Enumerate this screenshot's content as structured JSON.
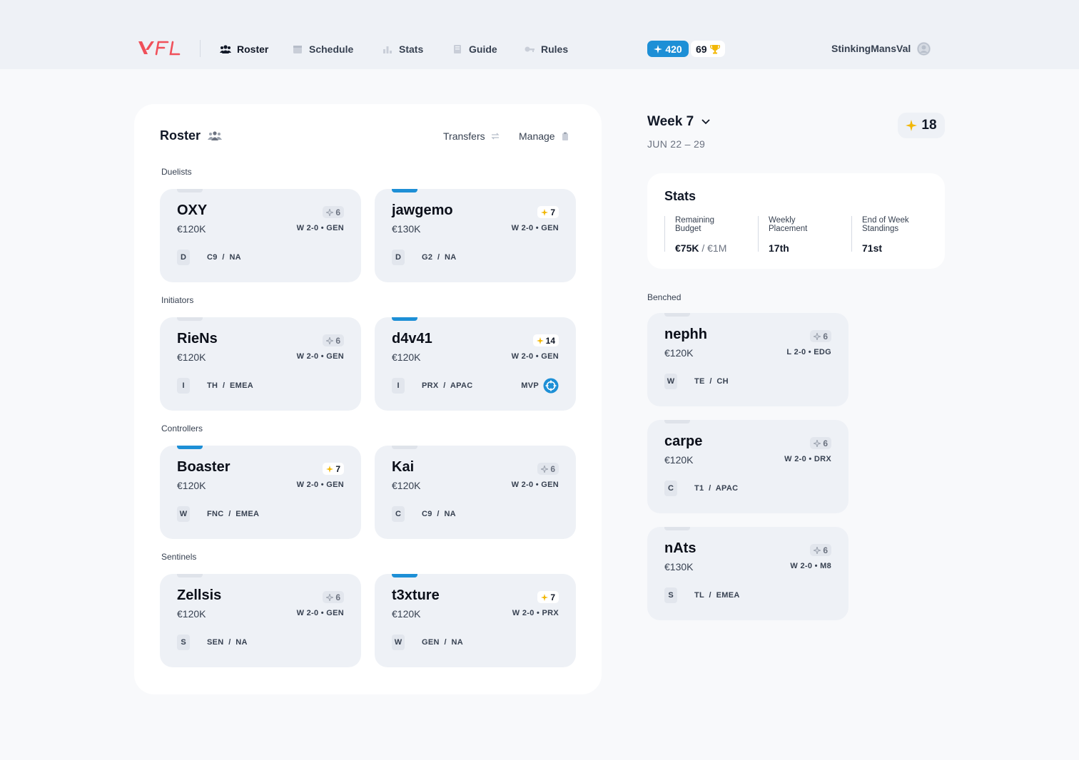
{
  "nav": {
    "items": [
      {
        "label": "Roster",
        "icon": "users-icon",
        "active": true
      },
      {
        "label": "Schedule",
        "icon": "calendar-icon"
      },
      {
        "label": "Stats",
        "icon": "bar-chart-icon"
      },
      {
        "label": "Guide",
        "icon": "book-icon"
      },
      {
        "label": "Rules",
        "icon": "key-icon"
      }
    ],
    "points": "420",
    "trophies": "69",
    "username": "StinkingMansVal"
  },
  "roster": {
    "title": "Roster",
    "transfers_label": "Transfers",
    "manage_label": "Manage",
    "sections": [
      {
        "label": "Duelists",
        "cards": [
          {
            "name": "OXY",
            "price": "€120K",
            "pts": "6",
            "gold": false,
            "tab": "grey",
            "record": "W 2-0 • GEN",
            "role": "D",
            "team": "C9  /  NA"
          },
          {
            "name": "jawgemo",
            "price": "€130K",
            "pts": "7",
            "gold": true,
            "tab": "blue",
            "record": "W 2-0 • GEN",
            "role": "D",
            "team": "G2  /  NA"
          }
        ]
      },
      {
        "label": "Initiators",
        "cards": [
          {
            "name": "RieNs",
            "price": "€120K",
            "pts": "6",
            "gold": false,
            "tab": "grey",
            "record": "W 2-0 • GEN",
            "role": "I",
            "team": "TH  /  EMEA"
          },
          {
            "name": "d4v41",
            "price": "€120K",
            "pts": "14",
            "gold": true,
            "tab": "blue",
            "record": "W 2-0 • GEN",
            "role": "I",
            "team": "PRX  /  APAC",
            "mvp": "MVP"
          }
        ]
      },
      {
        "label": "Controllers",
        "cards": [
          {
            "name": "Boaster",
            "price": "€120K",
            "pts": "7",
            "gold": true,
            "tab": "blue",
            "record": "W 2-0 • GEN",
            "role": "W",
            "team": "FNC  /  EMEA"
          },
          {
            "name": "Kai",
            "price": "€120K",
            "pts": "6",
            "gold": false,
            "tab": "grey",
            "record": "W 2-0 • GEN",
            "role": "C",
            "team": "C9  /  NA"
          }
        ]
      },
      {
        "label": "Sentinels",
        "cards": [
          {
            "name": "Zellsis",
            "price": "€120K",
            "pts": "6",
            "gold": false,
            "tab": "grey",
            "record": "W 2-0 • GEN",
            "role": "S",
            "team": "SEN  /  NA"
          },
          {
            "name": "t3xture",
            "price": "€120K",
            "pts": "7",
            "gold": true,
            "tab": "blue",
            "record": "W 2-0 • PRX",
            "role": "W",
            "team": "GEN  /  NA"
          }
        ]
      }
    ]
  },
  "week": {
    "label": "Week 7",
    "dates": "JUN 22 – 29",
    "points": "18"
  },
  "stats": {
    "title": "Stats",
    "items": [
      {
        "label": "Remaining Budget",
        "value": "€75K",
        "value_suffix": " / €1M"
      },
      {
        "label": "Weekly Placement",
        "value": "17th",
        "value_suffix": ""
      },
      {
        "label": "End of Week Standings",
        "value": "71st",
        "value_suffix": ""
      }
    ]
  },
  "benched": {
    "label": "Benched",
    "cards": [
      {
        "name": "nephh",
        "price": "€120K",
        "pts": "6",
        "gold": false,
        "tab": "grey",
        "record": "L 2-0 • EDG",
        "role": "W",
        "team": "TE  /  CH"
      },
      {
        "name": "carpe",
        "price": "€120K",
        "pts": "6",
        "gold": false,
        "tab": "grey",
        "record": "W 2-0 • DRX",
        "role": "C",
        "team": "T1  /  APAC"
      },
      {
        "name": "nAts",
        "price": "€130K",
        "pts": "6",
        "gold": false,
        "tab": "grey",
        "record": "W 2-0 • M8",
        "role": "S",
        "team": "TL  /  EMEA"
      }
    ]
  },
  "colors": {
    "accent": "#1d8fd6",
    "gold": "#f2b705",
    "logo": "#f0505a"
  }
}
